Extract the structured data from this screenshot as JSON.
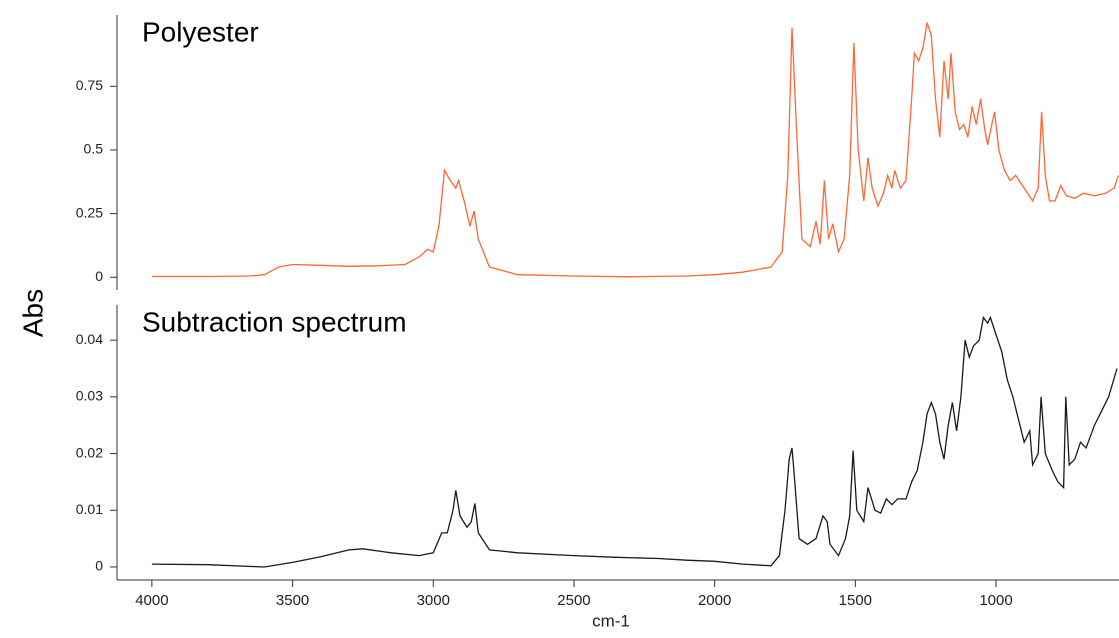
{
  "ylabel": "Abs",
  "chart_data": [
    {
      "type": "line",
      "title": "Polyester",
      "xlim": [
        4124,
        563
      ],
      "ylim": [
        -0.05,
        1.03
      ],
      "yticks": [
        0,
        0.25,
        0.5,
        0.75
      ],
      "series": [
        {
          "name": "Polyester",
          "color": "#ff6633",
          "x": [
            4000,
            3800,
            3650,
            3600,
            3550,
            3500,
            3400,
            3300,
            3200,
            3100,
            3050,
            3020,
            3000,
            2980,
            2960,
            2940,
            2920,
            2910,
            2890,
            2870,
            2855,
            2840,
            2800,
            2700,
            2500,
            2300,
            2100,
            2000,
            1900,
            1850,
            1800,
            1760,
            1740,
            1725,
            1710,
            1690,
            1660,
            1640,
            1625,
            1610,
            1595,
            1580,
            1560,
            1540,
            1520,
            1505,
            1490,
            1470,
            1455,
            1440,
            1420,
            1400,
            1385,
            1370,
            1360,
            1340,
            1320,
            1300,
            1290,
            1275,
            1260,
            1245,
            1230,
            1215,
            1200,
            1185,
            1170,
            1160,
            1145,
            1130,
            1115,
            1100,
            1085,
            1070,
            1055,
            1040,
            1030,
            1015,
            1005,
            990,
            970,
            950,
            930,
            900,
            870,
            850,
            838,
            825,
            810,
            790,
            770,
            750,
            720,
            690,
            650,
            610,
            580,
            565
          ],
          "values": [
            0.003,
            0.003,
            0.005,
            0.01,
            0.04,
            0.05,
            0.047,
            0.043,
            0.045,
            0.05,
            0.08,
            0.11,
            0.1,
            0.2,
            0.42,
            0.38,
            0.35,
            0.38,
            0.3,
            0.2,
            0.26,
            0.15,
            0.04,
            0.01,
            0.005,
            0.002,
            0.005,
            0.01,
            0.02,
            0.03,
            0.04,
            0.1,
            0.4,
            0.98,
            0.6,
            0.15,
            0.12,
            0.22,
            0.13,
            0.38,
            0.15,
            0.21,
            0.1,
            0.15,
            0.4,
            0.92,
            0.5,
            0.3,
            0.47,
            0.35,
            0.28,
            0.33,
            0.4,
            0.35,
            0.42,
            0.35,
            0.38,
            0.7,
            0.88,
            0.85,
            0.9,
            1.0,
            0.95,
            0.7,
            0.55,
            0.85,
            0.7,
            0.88,
            0.65,
            0.58,
            0.6,
            0.55,
            0.67,
            0.6,
            0.7,
            0.58,
            0.52,
            0.6,
            0.65,
            0.5,
            0.42,
            0.38,
            0.4,
            0.35,
            0.3,
            0.35,
            0.65,
            0.4,
            0.3,
            0.3,
            0.36,
            0.32,
            0.31,
            0.33,
            0.32,
            0.33,
            0.35,
            0.4
          ]
        }
      ]
    },
    {
      "type": "line",
      "title": "Subtraction spectrum",
      "xlabel": "cm-1",
      "xlim": [
        4124,
        563
      ],
      "xticks": [
        4000,
        3500,
        3000,
        2500,
        2000,
        1500,
        1000
      ],
      "ylim": [
        -0.0023,
        0.0462
      ],
      "yticks": [
        0,
        0.01,
        0.02,
        0.03,
        0.04
      ],
      "series": [
        {
          "name": "Subtraction spectrum",
          "color": "#1a1a1a",
          "x": [
            4000,
            3800,
            3600,
            3500,
            3400,
            3300,
            3250,
            3150,
            3050,
            3000,
            2970,
            2950,
            2930,
            2920,
            2905,
            2880,
            2865,
            2852,
            2840,
            2800,
            2700,
            2500,
            2350,
            2200,
            2100,
            2000,
            1900,
            1800,
            1770,
            1750,
            1735,
            1725,
            1715,
            1700,
            1670,
            1640,
            1615,
            1600,
            1590,
            1560,
            1535,
            1520,
            1508,
            1495,
            1470,
            1455,
            1430,
            1410,
            1390,
            1370,
            1350,
            1320,
            1300,
            1280,
            1260,
            1245,
            1230,
            1215,
            1200,
            1185,
            1170,
            1155,
            1140,
            1125,
            1110,
            1095,
            1080,
            1060,
            1045,
            1030,
            1020,
            1000,
            980,
            960,
            940,
            920,
            900,
            880,
            870,
            850,
            840,
            825,
            800,
            780,
            760,
            752,
            740,
            720,
            700,
            680,
            650,
            620,
            600,
            570
          ],
          "values": [
            0.0005,
            0.0004,
            0,
            0.0008,
            0.0018,
            0.003,
            0.0032,
            0.0025,
            0.002,
            0.0025,
            0.006,
            0.006,
            0.01,
            0.0135,
            0.009,
            0.007,
            0.008,
            0.0112,
            0.006,
            0.003,
            0.0025,
            0.002,
            0.0017,
            0.0015,
            0.0012,
            0.001,
            0.0005,
            0.0002,
            0.002,
            0.01,
            0.019,
            0.021,
            0.015,
            0.005,
            0.004,
            0.005,
            0.009,
            0.008,
            0.004,
            0.002,
            0.005,
            0.009,
            0.0205,
            0.01,
            0.008,
            0.014,
            0.01,
            0.0095,
            0.012,
            0.011,
            0.012,
            0.012,
            0.015,
            0.017,
            0.022,
            0.027,
            0.029,
            0.027,
            0.022,
            0.019,
            0.025,
            0.029,
            0.024,
            0.03,
            0.04,
            0.037,
            0.039,
            0.04,
            0.044,
            0.043,
            0.044,
            0.041,
            0.038,
            0.033,
            0.03,
            0.026,
            0.022,
            0.024,
            0.018,
            0.02,
            0.03,
            0.02,
            0.017,
            0.015,
            0.014,
            0.03,
            0.018,
            0.019,
            0.022,
            0.021,
            0.025,
            0.028,
            0.03,
            0.035
          ]
        }
      ]
    }
  ]
}
